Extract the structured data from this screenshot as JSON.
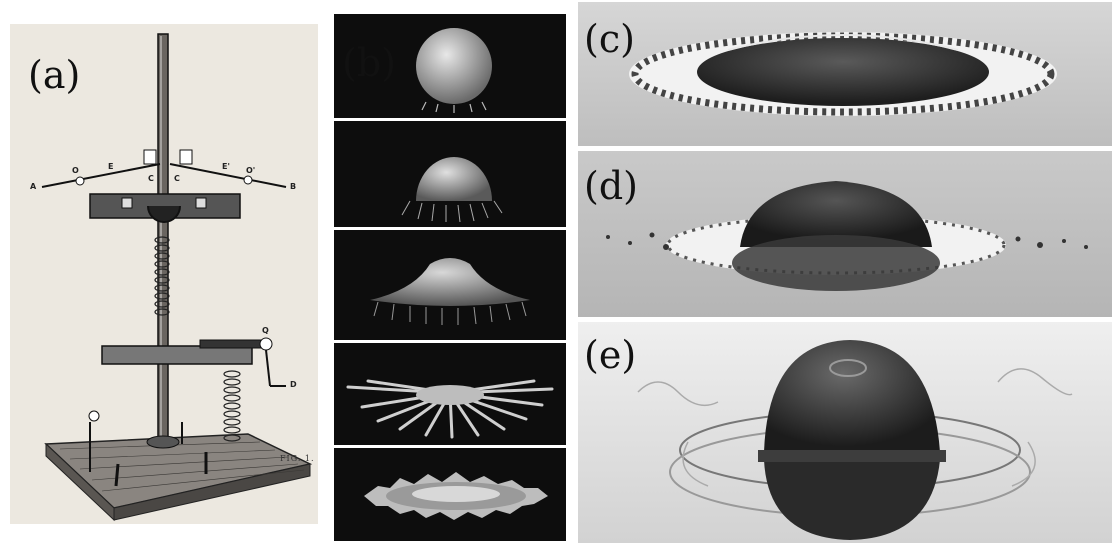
{
  "panels": {
    "a": {
      "label": "(a)",
      "caption": "FIG. 1.",
      "marks": [
        "A",
        "B",
        "C",
        "C",
        "D",
        "E",
        "E'",
        "O",
        "O'",
        "Q"
      ]
    },
    "b": {
      "label": "(b)"
    },
    "c": {
      "label": "(c)"
    },
    "d": {
      "label": "(d)"
    },
    "e": {
      "label": "(e)"
    }
  },
  "colors": {
    "dark_bg": "#0d0d0d",
    "photo_bg": "#c9c9c9",
    "drop": "#333333"
  }
}
